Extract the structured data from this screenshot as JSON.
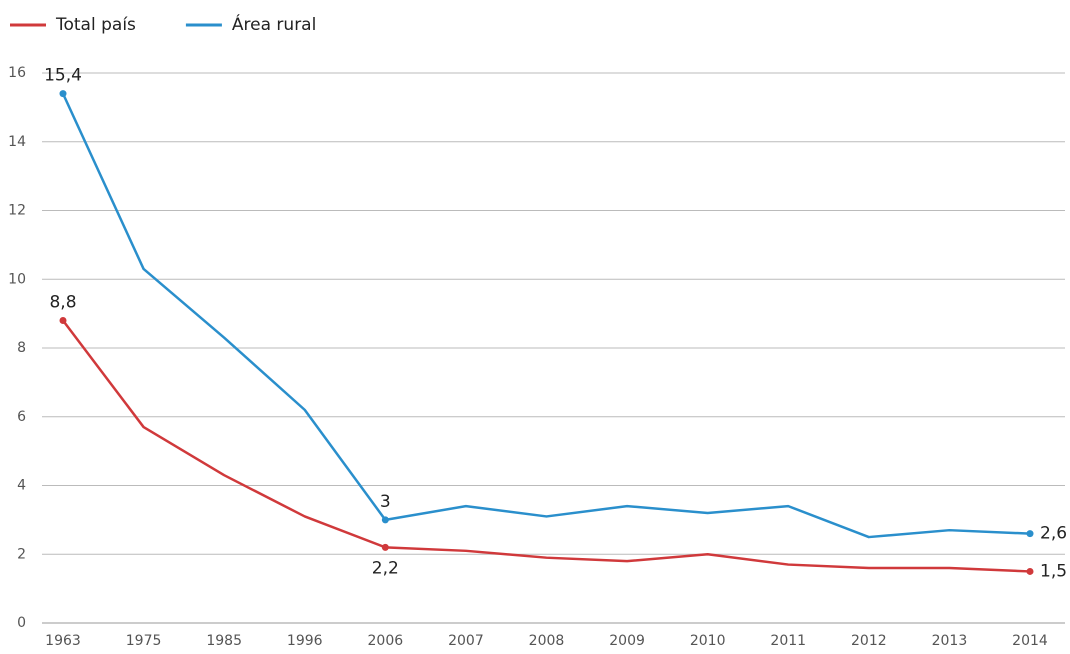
{
  "chart_data": {
    "type": "line",
    "categories": [
      "1963",
      "1975",
      "1985",
      "1996",
      "2006",
      "2007",
      "2008",
      "2009",
      "2010",
      "2011",
      "2012",
      "2013",
      "2014"
    ],
    "series": [
      {
        "name": "Total país",
        "color": "#d0393b",
        "values": [
          8.8,
          5.7,
          4.3,
          3.1,
          2.2,
          2.1,
          1.9,
          1.8,
          2.0,
          1.7,
          1.6,
          1.6,
          1.5
        ],
        "value_labels": [
          "8,8",
          null,
          null,
          null,
          "2,2",
          null,
          null,
          null,
          null,
          null,
          null,
          null,
          "1,5"
        ]
      },
      {
        "name": "Área rural",
        "color": "#2a8fcc",
        "values": [
          15.4,
          10.3,
          8.3,
          6.2,
          3,
          3.4,
          3.1,
          3.4,
          3.2,
          3.4,
          2.5,
          2.7,
          2.6
        ],
        "value_labels": [
          "15,4",
          null,
          null,
          null,
          "3",
          null,
          null,
          null,
          null,
          null,
          null,
          null,
          "2,6"
        ]
      }
    ],
    "ylim": [
      0,
      16
    ],
    "yticks": [
      0,
      2,
      4,
      6,
      8,
      10,
      12,
      14,
      16
    ],
    "grid": true,
    "legend": "top-left"
  }
}
